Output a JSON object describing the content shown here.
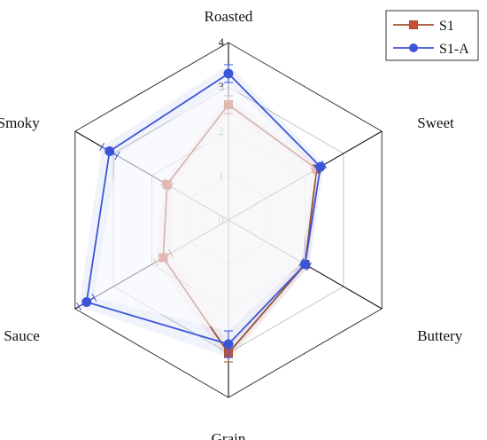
{
  "chart_data": {
    "type": "radar",
    "title": "",
    "axes": [
      "Roasted",
      "Sweet",
      "Buttery",
      "Grain",
      "Sauce",
      "Smoky"
    ],
    "rlim": [
      0,
      4
    ],
    "rticks": [
      "0",
      "1",
      "2",
      "3",
      "4"
    ],
    "grid": true,
    "legend_position": "top-right",
    "series": [
      {
        "name": "S1",
        "color": "#a0522d",
        "marker": "square",
        "values": [
          2.6,
          2.3,
          2.0,
          3.0,
          1.7,
          1.6
        ],
        "errors": [
          0.2,
          0.1,
          0.1,
          0.2,
          0.2,
          0.1
        ]
      },
      {
        "name": "S1-A",
        "color": "#3b55d9",
        "marker": "circle",
        "values": [
          3.3,
          2.4,
          2.0,
          2.8,
          3.7,
          3.1
        ],
        "errors": [
          0.2,
          0.1,
          0.1,
          0.3,
          0.2,
          0.2
        ]
      }
    ]
  }
}
